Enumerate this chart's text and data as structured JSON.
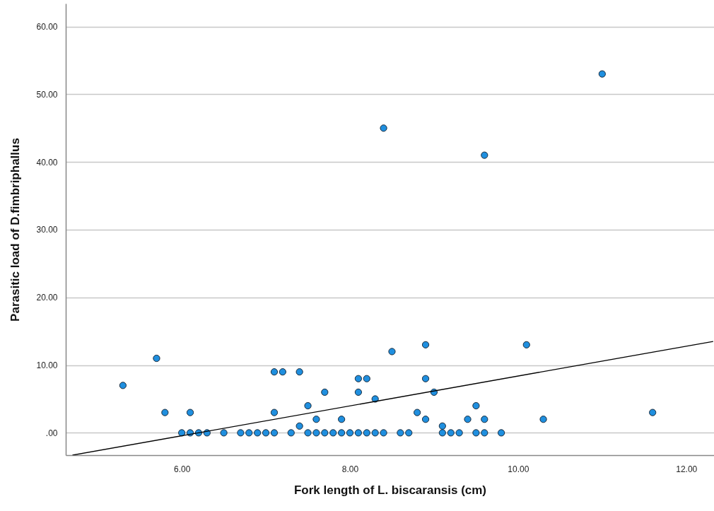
{
  "chart_data": {
    "type": "scatter",
    "xlabel": "Fork length of L. biscaransis (cm)",
    "ylabel": "Parasitic load of D.fimbriphallus",
    "grid": "y",
    "xlim": [
      4.62,
      12.33
    ],
    "ylim": [
      -3.3,
      63.4
    ],
    "xticks": [
      {
        "value": 6,
        "label": "6.00"
      },
      {
        "value": 8,
        "label": "8.00"
      },
      {
        "value": 10,
        "label": "10.00"
      },
      {
        "value": 12,
        "label": "12.00"
      }
    ],
    "yticks": [
      {
        "value": 0,
        "label": ".00"
      },
      {
        "value": 10,
        "label": "10.00"
      },
      {
        "value": 20,
        "label": "20.00"
      },
      {
        "value": 30,
        "label": "30.00"
      },
      {
        "value": 40,
        "label": "40.00"
      },
      {
        "value": 50,
        "label": "50.00"
      },
      {
        "value": 60,
        "label": "60.00"
      }
    ],
    "series": [
      {
        "marker": "circle",
        "color": "#1f8fdf",
        "x": [
          5.3,
          5.7,
          5.8,
          6.1,
          7.1,
          7.2,
          7.4,
          7.1,
          7.5,
          7.4,
          7.6,
          7.7,
          7.9,
          8.1,
          8.2,
          8.1,
          8.3,
          8.5,
          8.9,
          8.9,
          9.0,
          8.8,
          8.9,
          9.1,
          9.4,
          9.5,
          9.6,
          10.1,
          10.3,
          11.6,
          11.0,
          8.4,
          9.6,
          6.0,
          6.1,
          6.2,
          6.3,
          6.5,
          6.7,
          6.8,
          6.9,
          7.0,
          7.1,
          7.3,
          7.5,
          7.6,
          7.7,
          7.8,
          7.9,
          8.0,
          8.1,
          8.2,
          8.3,
          8.4,
          8.6,
          8.7,
          9.1,
          9.2,
          9.3,
          9.5,
          9.6,
          9.8
        ],
        "values": [
          7,
          11,
          3,
          3,
          9,
          9,
          9,
          3,
          4,
          1,
          2,
          6,
          2,
          8,
          8,
          6,
          5,
          12,
          13,
          8,
          6,
          3,
          2,
          1,
          2,
          4,
          2,
          13,
          2,
          3,
          53,
          45,
          41,
          0,
          0,
          0,
          0,
          0,
          0,
          0,
          0,
          0,
          0,
          0,
          0,
          0,
          0,
          0,
          0,
          0,
          0,
          0,
          0,
          0,
          0,
          0,
          0,
          0,
          0,
          0,
          0,
          0
        ]
      },
      {
        "type": "line",
        "color": "#000000",
        "x": [
          4.7,
          12.32
        ],
        "values": [
          -3.3,
          13.5
        ]
      }
    ]
  }
}
